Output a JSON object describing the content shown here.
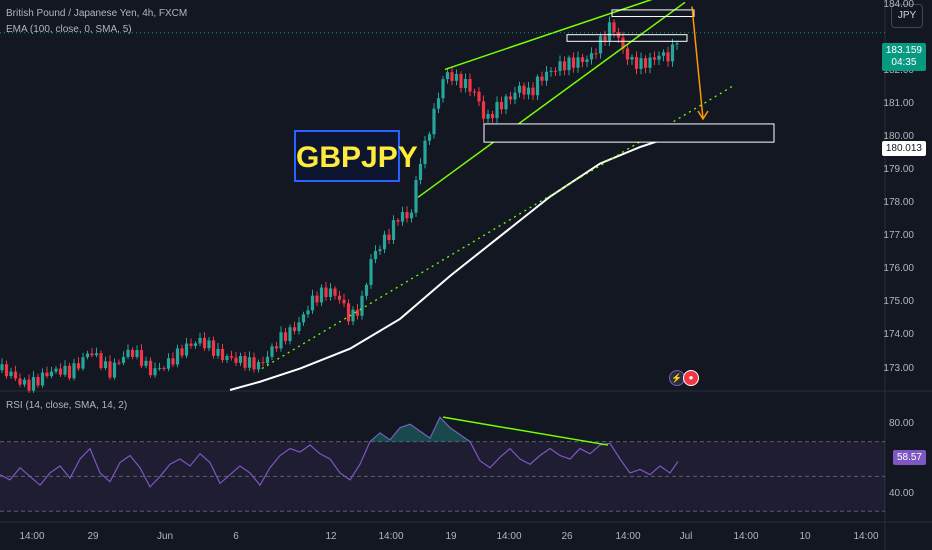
{
  "header": {
    "title": "British Pound / Japanese Yen, 4h, FXCM",
    "indicator": "EMA (100, close, 0, SMA, 5)",
    "rsi_label": "RSI (14, close, SMA, 14, 2)"
  },
  "currency_button": "JPY",
  "annotation_label": "GBPJPY",
  "price_badge": {
    "value": "183.159",
    "timer": "04:35",
    "color": "#089981"
  },
  "level_badge": {
    "value": "180.013"
  },
  "rsi_badge": {
    "value": "58.57",
    "color": "#7e57c2"
  },
  "colors": {
    "up": "#089981",
    "up_bright": "#26a69a",
    "down": "#f23645",
    "ema": "#ffffff",
    "rsi": "#7e57c2",
    "trend": "#76ff03",
    "target_arrow": "#ff9800"
  },
  "icons": [
    "lightning-icon",
    "flag-icon"
  ],
  "chart_data": [
    {
      "type": "candlestick",
      "title": "British Pound / Japanese Yen, 4h, FXCM",
      "y_ticks": [
        "184.00",
        "182.00",
        "181.00",
        "180.00",
        "179.00",
        "178.00",
        "177.00",
        "176.00",
        "175.00",
        "174.00",
        "173.00"
      ],
      "ylim": [
        172.35,
        184.15
      ],
      "x_ticks": [
        "14:00",
        "29",
        "Jun",
        "6",
        "12",
        "14:00",
        "19",
        "14:00",
        "26",
        "14:00",
        "Jul",
        "14:00",
        "10",
        "14:00",
        "14:00"
      ],
      "close_path": [
        [
          0,
          172.95
        ],
        [
          10,
          172.8
        ],
        [
          20,
          172.5
        ],
        [
          30,
          172.4
        ],
        [
          40,
          172.6
        ],
        [
          50,
          172.8
        ],
        [
          60,
          172.85
        ],
        [
          70,
          172.8
        ],
        [
          80,
          173.1
        ],
        [
          90,
          173.5
        ],
        [
          100,
          173.2
        ],
        [
          110,
          172.9
        ],
        [
          120,
          173.3
        ],
        [
          130,
          173.6
        ],
        [
          140,
          173.4
        ],
        [
          150,
          173.0
        ],
        [
          160,
          173.1
        ],
        [
          170,
          173.3
        ],
        [
          180,
          173.6
        ],
        [
          190,
          173.8
        ],
        [
          200,
          173.9
        ],
        [
          210,
          173.7
        ],
        [
          220,
          173.4
        ],
        [
          230,
          173.3
        ],
        [
          240,
          173.2
        ],
        [
          250,
          173.1
        ],
        [
          260,
          173.0
        ],
        [
          270,
          173.4
        ],
        [
          280,
          173.8
        ],
        [
          290,
          174.0
        ],
        [
          300,
          174.3
        ],
        [
          310,
          174.9
        ],
        [
          320,
          175.2
        ],
        [
          330,
          175.3
        ],
        [
          340,
          175.1
        ],
        [
          350,
          174.5
        ],
        [
          360,
          174.9
        ],
        [
          365,
          175.4
        ],
        [
          370,
          176.3
        ],
        [
          380,
          176.8
        ],
        [
          390,
          177.2
        ],
        [
          400,
          177.8
        ],
        [
          410,
          177.6
        ],
        [
          415,
          178.5
        ],
        [
          420,
          179.4
        ],
        [
          425,
          179.8
        ],
        [
          430,
          180.4
        ],
        [
          435,
          180.9
        ],
        [
          440,
          181.5
        ],
        [
          445,
          182.0
        ],
        [
          450,
          181.9
        ],
        [
          460,
          181.7
        ],
        [
          470,
          181.5
        ],
        [
          480,
          181.0
        ],
        [
          485,
          180.4
        ],
        [
          490,
          180.6
        ],
        [
          500,
          180.9
        ],
        [
          510,
          181.1
        ],
        [
          520,
          181.4
        ],
        [
          530,
          181.2
        ],
        [
          540,
          181.7
        ],
        [
          550,
          181.9
        ],
        [
          560,
          182.1
        ],
        [
          570,
          182.2
        ],
        [
          580,
          182.3
        ],
        [
          590,
          182.4
        ],
        [
          600,
          182.9
        ],
        [
          610,
          183.4
        ],
        [
          615,
          183.35
        ],
        [
          620,
          182.9
        ],
        [
          630,
          182.4
        ],
        [
          640,
          182.3
        ],
        [
          650,
          182.4
        ],
        [
          660,
          182.6
        ],
        [
          670,
          182.5
        ],
        [
          678,
          183.16
        ]
      ],
      "ema_path": [
        [
          230,
          172.35
        ],
        [
          260,
          172.6
        ],
        [
          300,
          173.0
        ],
        [
          350,
          173.6
        ],
        [
          400,
          174.5
        ],
        [
          450,
          175.8
        ],
        [
          500,
          177.0
        ],
        [
          550,
          178.2
        ],
        [
          600,
          179.2
        ],
        [
          640,
          179.7
        ],
        [
          675,
          180.05
        ]
      ],
      "annotations": {
        "upper_channel": [
          [
            445,
            182.05
          ],
          [
            660,
            184.25
          ]
        ],
        "lower_channel": [
          [
            418,
            178.18
          ],
          [
            685,
            184.08
          ]
        ],
        "support_dotted": [
          [
            262,
            173.0
          ],
          [
            733,
            181.55
          ]
        ],
        "target_arrow": [
          [
            692,
            183.95
          ],
          [
            703,
            180.55
          ]
        ],
        "box_top": {
          "x": [
            612,
            694
          ],
          "y": [
            183.65,
            183.85
          ]
        },
        "box_mid": {
          "x": [
            567,
            687
          ],
          "y": [
            182.9,
            183.1
          ]
        },
        "target_zone": {
          "x": [
            484,
            774
          ],
          "y": [
            179.85,
            180.4
          ]
        }
      }
    },
    {
      "type": "line",
      "title": "RSI (14, close, SMA, 14, 2)",
      "y_ticks": [
        "80.00",
        "40.00"
      ],
      "ylim": [
        25,
        95
      ],
      "bands": [
        70,
        50,
        30
      ],
      "values": [
        [
          0,
          51
        ],
        [
          10,
          48
        ],
        [
          20,
          55
        ],
        [
          30,
          50
        ],
        [
          40,
          45
        ],
        [
          50,
          52
        ],
        [
          60,
          56
        ],
        [
          70,
          49
        ],
        [
          80,
          60
        ],
        [
          90,
          66
        ],
        [
          100,
          52
        ],
        [
          110,
          47
        ],
        [
          120,
          58
        ],
        [
          130,
          62
        ],
        [
          140,
          55
        ],
        [
          150,
          44
        ],
        [
          160,
          50
        ],
        [
          170,
          57
        ],
        [
          180,
          60
        ],
        [
          190,
          56
        ],
        [
          200,
          63
        ],
        [
          210,
          58
        ],
        [
          220,
          46
        ],
        [
          230,
          51
        ],
        [
          240,
          56
        ],
        [
          250,
          52
        ],
        [
          260,
          45
        ],
        [
          270,
          55
        ],
        [
          280,
          62
        ],
        [
          290,
          66
        ],
        [
          300,
          64
        ],
        [
          310,
          68
        ],
        [
          320,
          63
        ],
        [
          330,
          60
        ],
        [
          340,
          52
        ],
        [
          350,
          48
        ],
        [
          360,
          57
        ],
        [
          370,
          70
        ],
        [
          380,
          75
        ],
        [
          390,
          71
        ],
        [
          400,
          78
        ],
        [
          410,
          80
        ],
        [
          420,
          76
        ],
        [
          430,
          72
        ],
        [
          440,
          84
        ],
        [
          450,
          78
        ],
        [
          460,
          74
        ],
        [
          470,
          70
        ],
        [
          480,
          59
        ],
        [
          490,
          55
        ],
        [
          500,
          61
        ],
        [
          510,
          66
        ],
        [
          520,
          60
        ],
        [
          530,
          57
        ],
        [
          540,
          62
        ],
        [
          550,
          66
        ],
        [
          560,
          62
        ],
        [
          570,
          60
        ],
        [
          580,
          66
        ],
        [
          590,
          63
        ],
        [
          600,
          68
        ],
        [
          610,
          69
        ],
        [
          620,
          60
        ],
        [
          630,
          52
        ],
        [
          640,
          54
        ],
        [
          650,
          51
        ],
        [
          660,
          56
        ],
        [
          670,
          52
        ],
        [
          678,
          58.57
        ]
      ],
      "divergence_line": [
        [
          443,
          84
        ],
        [
          608,
          68
        ]
      ]
    }
  ]
}
